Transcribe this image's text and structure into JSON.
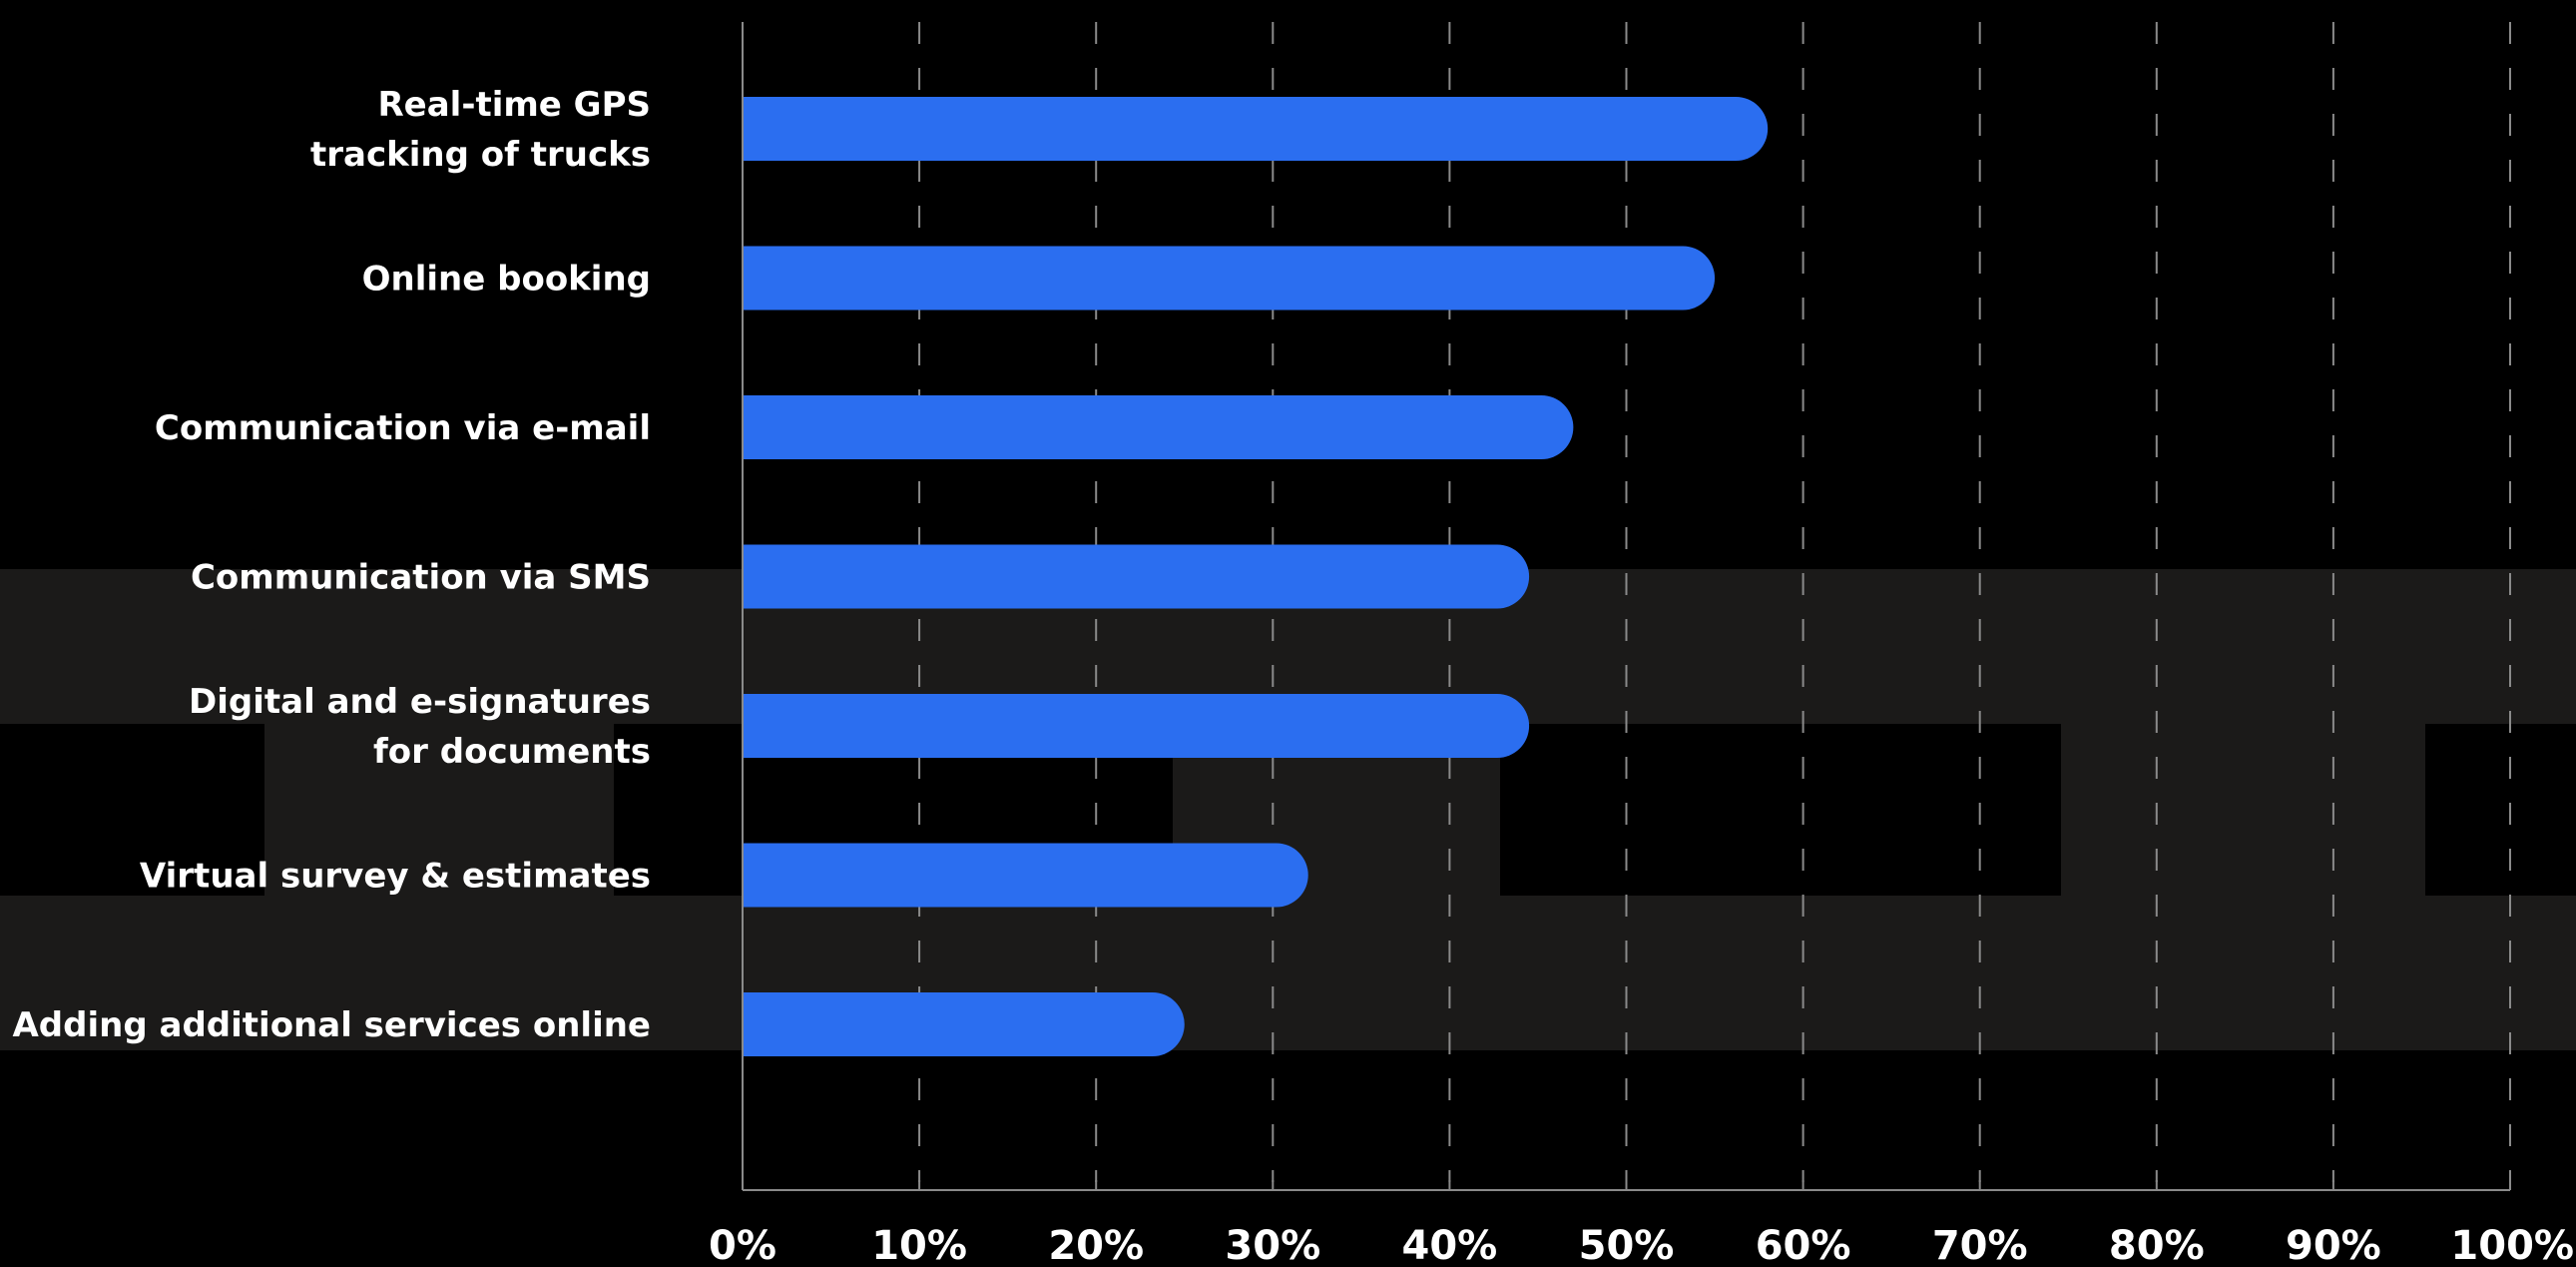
{
  "chart_data": {
    "type": "bar",
    "orientation": "horizontal",
    "title": "",
    "xlabel": "",
    "ylabel": "",
    "categories": [
      [
        "Real-time GPS",
        "tracking of trucks"
      ],
      [
        "Online booking"
      ],
      [
        "Communication via e-mail"
      ],
      [
        "Communication via SMS"
      ],
      [
        "Digital and e-signatures",
        "for documents"
      ],
      [
        "Virtual survey & estimates"
      ],
      [
        "Adding additional services online"
      ]
    ],
    "values": [
      58,
      55,
      47,
      44.5,
      44.5,
      32,
      25
    ],
    "xlim": [
      0,
      100
    ],
    "x_ticks": [
      "0%",
      "10%",
      "20%",
      "30%",
      "40%",
      "50%",
      "60%",
      "70%",
      "80%",
      "90%",
      "100%"
    ],
    "grid": "vertical dashed",
    "legend": "none",
    "colors": {
      "bar": "#2b6ef0",
      "background": "#000000",
      "background_shapes": "#1b1a19",
      "text": "#ffffff",
      "grid": "#8a8a8a"
    }
  }
}
